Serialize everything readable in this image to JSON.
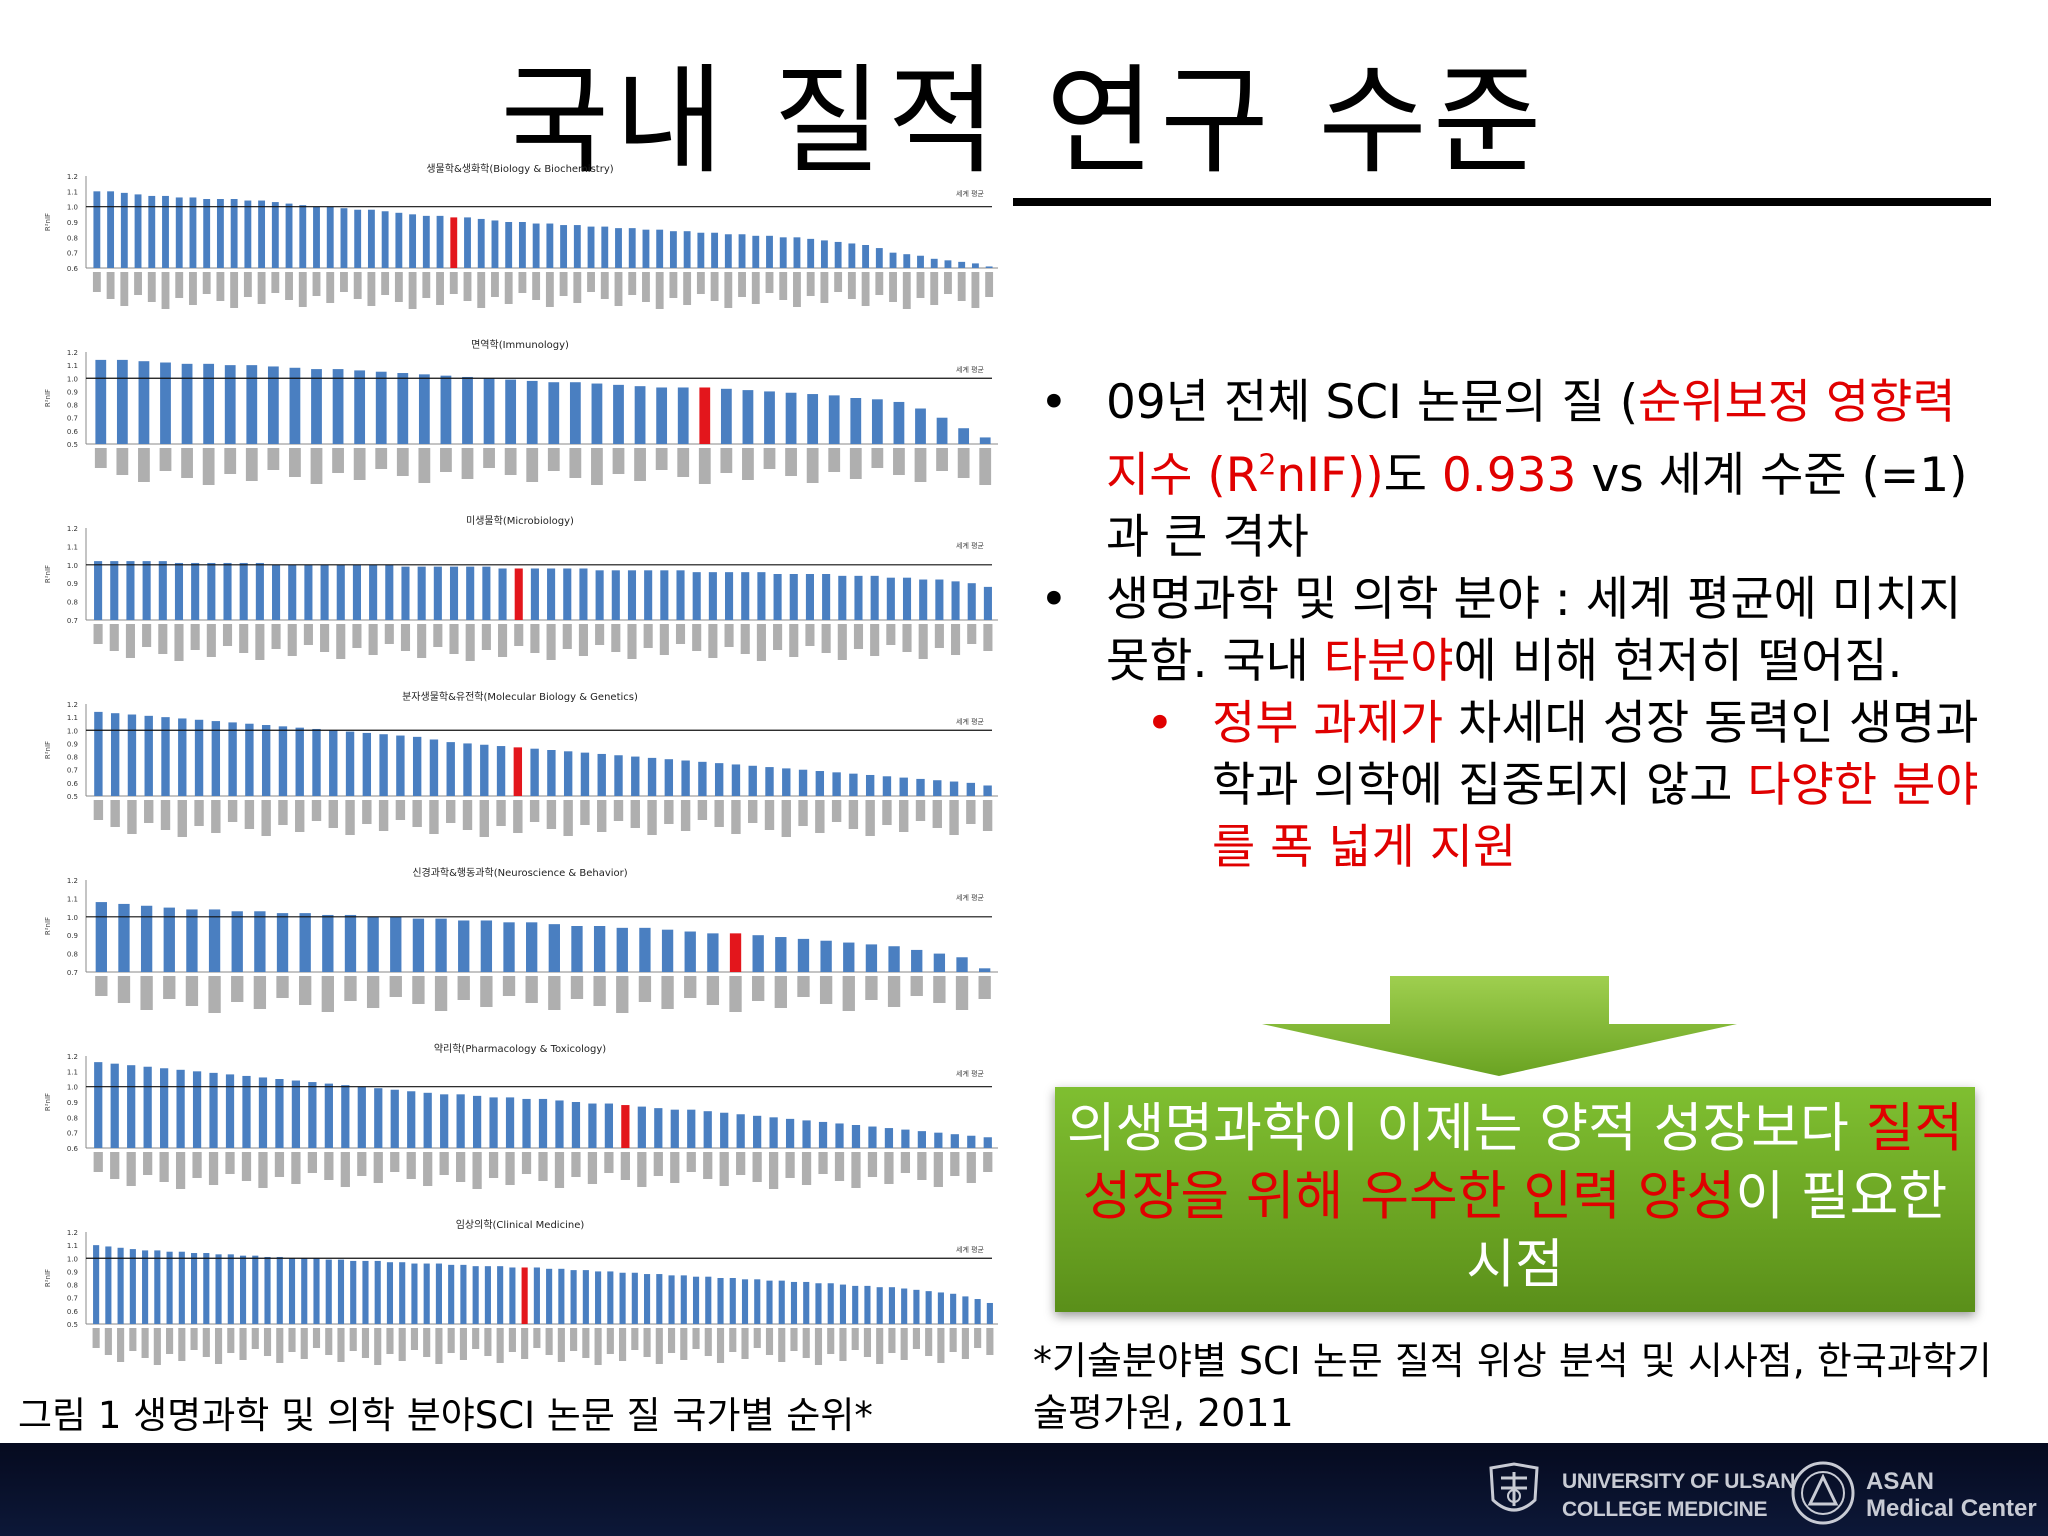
{
  "slide": {
    "title": "국내 질적 연구 수준",
    "caption": "그림 1 생명과학 및 의학 분야SCI 논문 질 국가별 순위*",
    "bullets": [
      {
        "parts": [
          {
            "t": "09년  전체 SCI 논문의 질 (",
            "red": false
          },
          {
            "t": "순위보정 영향력 지수 (R",
            "red": true
          },
          {
            "t": "2",
            "red": true,
            "sup": true
          },
          {
            "t": "nIF))",
            "red": true
          },
          {
            "t": "도 ",
            "red": false
          },
          {
            "t": "0.933",
            "red": true
          },
          {
            "t": " vs 세계 수준 (=1)과 큰 격차",
            "red": false
          }
        ]
      },
      {
        "parts": [
          {
            "t": "생명과학 및 의학 분야 : 세계 평균에 미치지 못함. 국내 ",
            "red": false
          },
          {
            "t": "타분야",
            "red": true
          },
          {
            "t": "에 비해 현저히 떨어짐.",
            "red": false
          }
        ]
      }
    ],
    "sub_bullet": {
      "parts": [
        {
          "t": "정부 과제가",
          "red": true
        },
        {
          "t": " 차세대 성장 동력인 생명과학과 의학에 집중되지 않고 ",
          "red": false
        },
        {
          "t": "다양한 분야를 폭 넓게 지원",
          "red": true
        }
      ]
    },
    "conclusion": {
      "parts": [
        {
          "t": "의생명과학이 이제는 양적 성장보다 ",
          "red": false
        },
        {
          "t": "질적 성장을 위해 우수한 인력 양성",
          "red": true
        },
        {
          "t": "이 필요한 시점",
          "red": false
        }
      ]
    },
    "source": "*기술분야별 SCI 논문 질적 위상 분석 및 시사점, 한국과학기술평가원, 2011",
    "bullet_glyph": "•",
    "highlight_color": "#e00000",
    "accent_green": "#6aa322"
  },
  "footer": {
    "logo1_line1": "UNIVERSITY OF ULSAN",
    "logo1_line2": "COLLEGE MEDICINE",
    "logo2_line1": "ASAN",
    "logo2_line2": "Medical Center",
    "logo1_icon": "university-crest-icon",
    "logo2_icon": "asan-seal-icon"
  },
  "chart_data": [
    {
      "type": "bar",
      "title": "생물학&생화학(Biology & Biochemistry)",
      "legend": "세계 평균",
      "ylabel": "R²nIF",
      "ylim": [
        0.6,
        1.2
      ],
      "yticks": [
        "0.6",
        "0.7",
        "0.8",
        "0.9",
        "1.0",
        "1.1",
        "1.2"
      ],
      "reference": 1.0,
      "highlight_index": 26,
      "values": [
        1.1,
        1.1,
        1.09,
        1.08,
        1.07,
        1.07,
        1.06,
        1.06,
        1.05,
        1.05,
        1.05,
        1.04,
        1.04,
        1.03,
        1.02,
        1.01,
        1.0,
        1.0,
        0.99,
        0.98,
        0.98,
        0.97,
        0.96,
        0.95,
        0.94,
        0.94,
        0.93,
        0.93,
        0.92,
        0.91,
        0.9,
        0.9,
        0.89,
        0.89,
        0.88,
        0.88,
        0.87,
        0.87,
        0.86,
        0.86,
        0.85,
        0.85,
        0.84,
        0.84,
        0.83,
        0.83,
        0.82,
        0.82,
        0.81,
        0.81,
        0.8,
        0.8,
        0.79,
        0.78,
        0.77,
        0.76,
        0.75,
        0.73,
        0.7,
        0.69,
        0.68,
        0.66,
        0.65,
        0.64,
        0.63,
        0.61
      ]
    },
    {
      "type": "bar",
      "title": "면역학(Immunology)",
      "legend": "세계 평균",
      "ylabel": "R²nIF",
      "ylim": [
        0.5,
        1.2
      ],
      "yticks": [
        "0.5",
        "0.6",
        "0.7",
        "0.8",
        "0.9",
        "1.0",
        "1.1",
        "1.2"
      ],
      "reference": 1.0,
      "highlight_index": 28,
      "values": [
        1.14,
        1.14,
        1.13,
        1.12,
        1.11,
        1.11,
        1.1,
        1.1,
        1.09,
        1.08,
        1.07,
        1.07,
        1.06,
        1.05,
        1.04,
        1.03,
        1.02,
        1.01,
        1.0,
        0.99,
        0.98,
        0.97,
        0.97,
        0.96,
        0.95,
        0.94,
        0.93,
        0.93,
        0.93,
        0.92,
        0.91,
        0.9,
        0.89,
        0.88,
        0.87,
        0.85,
        0.84,
        0.82,
        0.77,
        0.7,
        0.62,
        0.55
      ]
    },
    {
      "type": "bar",
      "title": "미생물학(Microbiology)",
      "legend": "세계 평균",
      "ylabel": "R²nIF",
      "ylim": [
        0.7,
        1.2
      ],
      "yticks": [
        "0.7",
        "0.8",
        "0.9",
        "1.0",
        "1.1",
        "1.2"
      ],
      "reference": 1.0,
      "highlight_index": 26,
      "values": [
        1.02,
        1.02,
        1.02,
        1.02,
        1.02,
        1.01,
        1.01,
        1.01,
        1.01,
        1.01,
        1.01,
        1.0,
        1.0,
        1.0,
        1.0,
        1.0,
        1.0,
        1.0,
        1.0,
        0.99,
        0.99,
        0.99,
        0.99,
        0.99,
        0.99,
        0.98,
        0.98,
        0.98,
        0.98,
        0.98,
        0.98,
        0.97,
        0.97,
        0.97,
        0.97,
        0.97,
        0.97,
        0.96,
        0.96,
        0.96,
        0.96,
        0.96,
        0.95,
        0.95,
        0.95,
        0.95,
        0.94,
        0.94,
        0.94,
        0.93,
        0.93,
        0.92,
        0.92,
        0.91,
        0.9,
        0.88
      ]
    },
    {
      "type": "bar",
      "title": "분자생물학&유전학(Molecular Biology & Genetics)",
      "legend": "세계 평균",
      "ylabel": "R²nIF",
      "ylim": [
        0.5,
        1.2
      ],
      "yticks": [
        "0.5",
        "0.6",
        "0.7",
        "0.8",
        "0.9",
        "1.0",
        "1.1",
        "1.2"
      ],
      "reference": 1.0,
      "highlight_index": 25,
      "values": [
        1.14,
        1.13,
        1.12,
        1.11,
        1.1,
        1.09,
        1.08,
        1.07,
        1.06,
        1.05,
        1.04,
        1.03,
        1.02,
        1.01,
        1.0,
        0.99,
        0.98,
        0.97,
        0.96,
        0.95,
        0.93,
        0.91,
        0.9,
        0.89,
        0.88,
        0.87,
        0.86,
        0.85,
        0.84,
        0.83,
        0.82,
        0.81,
        0.8,
        0.79,
        0.78,
        0.77,
        0.76,
        0.75,
        0.74,
        0.73,
        0.72,
        0.71,
        0.7,
        0.69,
        0.68,
        0.67,
        0.66,
        0.65,
        0.64,
        0.63,
        0.62,
        0.61,
        0.6,
        0.58
      ]
    },
    {
      "type": "bar",
      "title": "신경과학&행동과학(Neuroscience & Behavior)",
      "legend": "세계 평균",
      "ylabel": "R²nIF",
      "ylim": [
        0.7,
        1.2
      ],
      "yticks": [
        "0.7",
        "0.8",
        "0.9",
        "1.0",
        "1.1",
        "1.2"
      ],
      "reference": 1.0,
      "highlight_index": 28,
      "values": [
        1.08,
        1.07,
        1.06,
        1.05,
        1.04,
        1.04,
        1.03,
        1.03,
        1.02,
        1.02,
        1.01,
        1.01,
        1.0,
        1.0,
        0.99,
        0.99,
        0.98,
        0.98,
        0.97,
        0.97,
        0.96,
        0.95,
        0.95,
        0.94,
        0.94,
        0.93,
        0.92,
        0.91,
        0.91,
        0.9,
        0.89,
        0.88,
        0.87,
        0.86,
        0.85,
        0.84,
        0.82,
        0.8,
        0.78,
        0.72
      ]
    },
    {
      "type": "bar",
      "title": "약리학(Pharmacology & Toxicology)",
      "legend": "세계 평균",
      "ylabel": "R²nIF",
      "ylim": [
        0.6,
        1.2
      ],
      "yticks": [
        "0.6",
        "0.7",
        "0.8",
        "0.9",
        "1.0",
        "1.1",
        "1.2"
      ],
      "reference": 1.0,
      "highlight_index": 32,
      "values": [
        1.16,
        1.15,
        1.14,
        1.13,
        1.12,
        1.11,
        1.1,
        1.09,
        1.08,
        1.07,
        1.06,
        1.05,
        1.04,
        1.03,
        1.02,
        1.01,
        1.0,
        0.99,
        0.98,
        0.97,
        0.96,
        0.95,
        0.95,
        0.94,
        0.93,
        0.93,
        0.92,
        0.92,
        0.91,
        0.9,
        0.89,
        0.89,
        0.88,
        0.87,
        0.86,
        0.85,
        0.85,
        0.84,
        0.83,
        0.82,
        0.81,
        0.8,
        0.79,
        0.78,
        0.77,
        0.76,
        0.75,
        0.74,
        0.73,
        0.72,
        0.71,
        0.7,
        0.69,
        0.68,
        0.67
      ]
    },
    {
      "type": "bar",
      "title": "임상의학(Clinical Medicine)",
      "legend": "세계 평균",
      "ylabel": "R²nIF",
      "ylim": [
        0.5,
        1.2
      ],
      "yticks": [
        "0.5",
        "0.6",
        "0.7",
        "0.8",
        "0.9",
        "1.0",
        "1.1",
        "1.2"
      ],
      "reference": 1.0,
      "highlight_index": 35,
      "values": [
        1.1,
        1.09,
        1.08,
        1.07,
        1.06,
        1.06,
        1.05,
        1.05,
        1.04,
        1.04,
        1.03,
        1.03,
        1.02,
        1.02,
        1.01,
        1.01,
        1.0,
        1.0,
        1.0,
        0.99,
        0.99,
        0.98,
        0.98,
        0.98,
        0.97,
        0.97,
        0.96,
        0.96,
        0.96,
        0.95,
        0.95,
        0.94,
        0.94,
        0.94,
        0.93,
        0.93,
        0.93,
        0.92,
        0.92,
        0.91,
        0.91,
        0.9,
        0.9,
        0.89,
        0.89,
        0.88,
        0.88,
        0.87,
        0.87,
        0.86,
        0.86,
        0.85,
        0.85,
        0.84,
        0.84,
        0.83,
        0.83,
        0.82,
        0.82,
        0.81,
        0.81,
        0.8,
        0.79,
        0.79,
        0.78,
        0.78,
        0.77,
        0.76,
        0.75,
        0.74,
        0.73,
        0.71,
        0.69,
        0.66
      ]
    }
  ]
}
